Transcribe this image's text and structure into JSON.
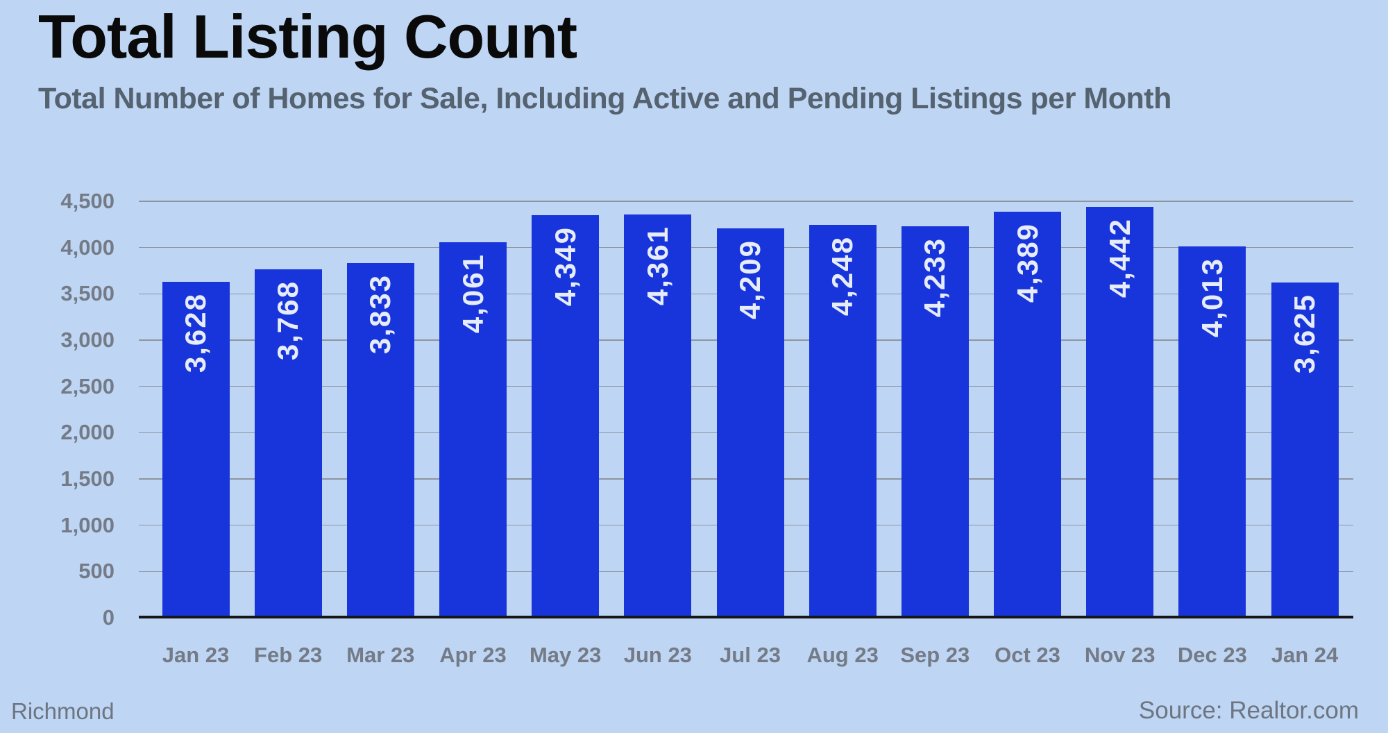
{
  "header": {
    "title": "Total Listing Count",
    "subtitle": "Total Number of Homes for Sale, Including Active and Pending Listings per Month"
  },
  "footer": {
    "region": "Richmond",
    "source": "Source: Realtor.com"
  },
  "chart_data": {
    "type": "bar",
    "title": "Total Listing Count",
    "subtitle": "Total Number of Homes for Sale, Including Active and Pending Listings per Month",
    "categories": [
      "Jan 23",
      "Feb 23",
      "Mar 23",
      "Apr 23",
      "May 23",
      "Jun 23",
      "Jul 23",
      "Aug 23",
      "Sep 23",
      "Oct 23",
      "Nov 23",
      "Dec 23",
      "Jan 24"
    ],
    "values": [
      3628,
      3768,
      3833,
      4061,
      4349,
      4361,
      4209,
      4248,
      4233,
      4389,
      4442,
      4013,
      3625
    ],
    "value_labels": [
      "3,628",
      "3,768",
      "3,833",
      "4,061",
      "4,349",
      "4,361",
      "4,209",
      "4,248",
      "4,233",
      "4,389",
      "4,442",
      "4,013",
      "3,625"
    ],
    "xlabel": "",
    "ylabel": "",
    "ylim": [
      0,
      4500
    ],
    "ytick_step": 500,
    "ytick_labels": [
      "0",
      "500",
      "1,000",
      "1,500",
      "2,000",
      "2,500",
      "3,000",
      "3,500",
      "4,000",
      "4,500"
    ],
    "grid": true,
    "legend": "none",
    "colors": {
      "background": "#bed5f4",
      "bar": "#1735db",
      "bar_label": "#e6ecf9",
      "gridline": "#8e95a0",
      "axis_line": "#161616",
      "tick_label": "#747b86",
      "title": "#0a0a0a",
      "subtitle": "#55626f",
      "footer": "#6d7580"
    }
  }
}
